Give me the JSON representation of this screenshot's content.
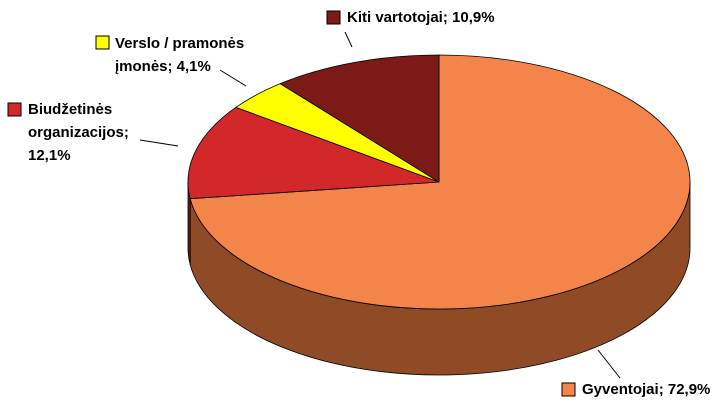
{
  "chart_data": {
    "type": "pie",
    "labels": [
      [
        "Gyventojai; 72,9%"
      ],
      [
        "Biudžetinės",
        "organizacijos;",
        "12,1%"
      ],
      [
        "Verslo / pramonės",
        "įmonės; 4,1%"
      ],
      [
        "Kiti vartotojai; 10,9%"
      ]
    ],
    "values": [
      72.9,
      12.1,
      4.1,
      10.9
    ],
    "colors": [
      "#F4854A",
      "#D2282A",
      "#FFFF00",
      "#7B1A16"
    ],
    "side_colors": [
      "#8F4A26",
      "#7A1416",
      "#8A8A00",
      "#4A0E0C"
    ]
  }
}
